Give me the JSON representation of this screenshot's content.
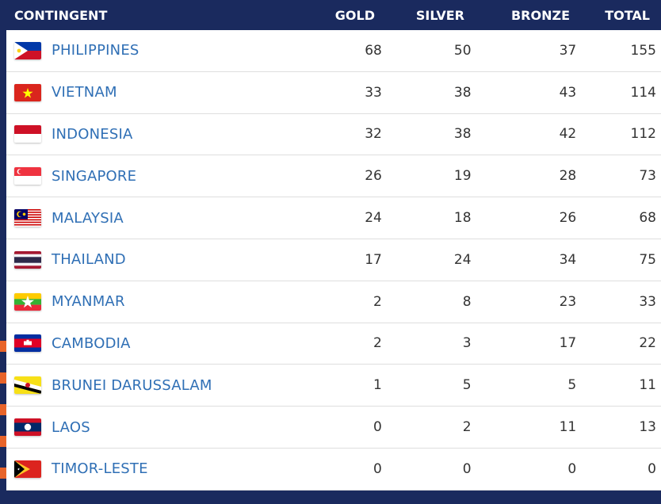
{
  "header": {
    "contingent": "CONTINGENT",
    "gold": "GOLD",
    "silver": "SILVER",
    "bronze": "BRONZE",
    "total": "TOTAL"
  },
  "rows": [
    {
      "name": "PHILIPPINES",
      "flag": "philippines-flag-icon",
      "gold": "68",
      "silver": "50",
      "bronze": "37",
      "total": "155"
    },
    {
      "name": "VIETNAM",
      "flag": "vietnam-flag-icon",
      "gold": "33",
      "silver": "38",
      "bronze": "43",
      "total": "114"
    },
    {
      "name": "INDONESIA",
      "flag": "indonesia-flag-icon",
      "gold": "32",
      "silver": "38",
      "bronze": "42",
      "total": "112"
    },
    {
      "name": "SINGAPORE",
      "flag": "singapore-flag-icon",
      "gold": "26",
      "silver": "19",
      "bronze": "28",
      "total": "73"
    },
    {
      "name": "MALAYSIA",
      "flag": "malaysia-flag-icon",
      "gold": "24",
      "silver": "18",
      "bronze": "26",
      "total": "68"
    },
    {
      "name": "THAILAND",
      "flag": "thailand-flag-icon",
      "gold": "17",
      "silver": "24",
      "bronze": "34",
      "total": "75"
    },
    {
      "name": "MYANMAR",
      "flag": "myanmar-flag-icon",
      "gold": "2",
      "silver": "8",
      "bronze": "23",
      "total": "33"
    },
    {
      "name": "CAMBODIA",
      "flag": "cambodia-flag-icon",
      "gold": "2",
      "silver": "3",
      "bronze": "17",
      "total": "22"
    },
    {
      "name": "BRUNEI DARUSSALAM",
      "flag": "brunei-flag-icon",
      "gold": "1",
      "silver": "5",
      "bronze": "5",
      "total": "11"
    },
    {
      "name": "LAOS",
      "flag": "laos-flag-icon",
      "gold": "0",
      "silver": "2",
      "bronze": "11",
      "total": "13"
    },
    {
      "name": "TIMOR-LESTE",
      "flag": "timor-leste-flag-icon",
      "gold": "0",
      "silver": "0",
      "bronze": "0",
      "total": "0"
    }
  ],
  "colors": {
    "header_bg": "#1a2a5e",
    "link": "#2f6fb5",
    "accent_stripe": "#e8642a"
  }
}
